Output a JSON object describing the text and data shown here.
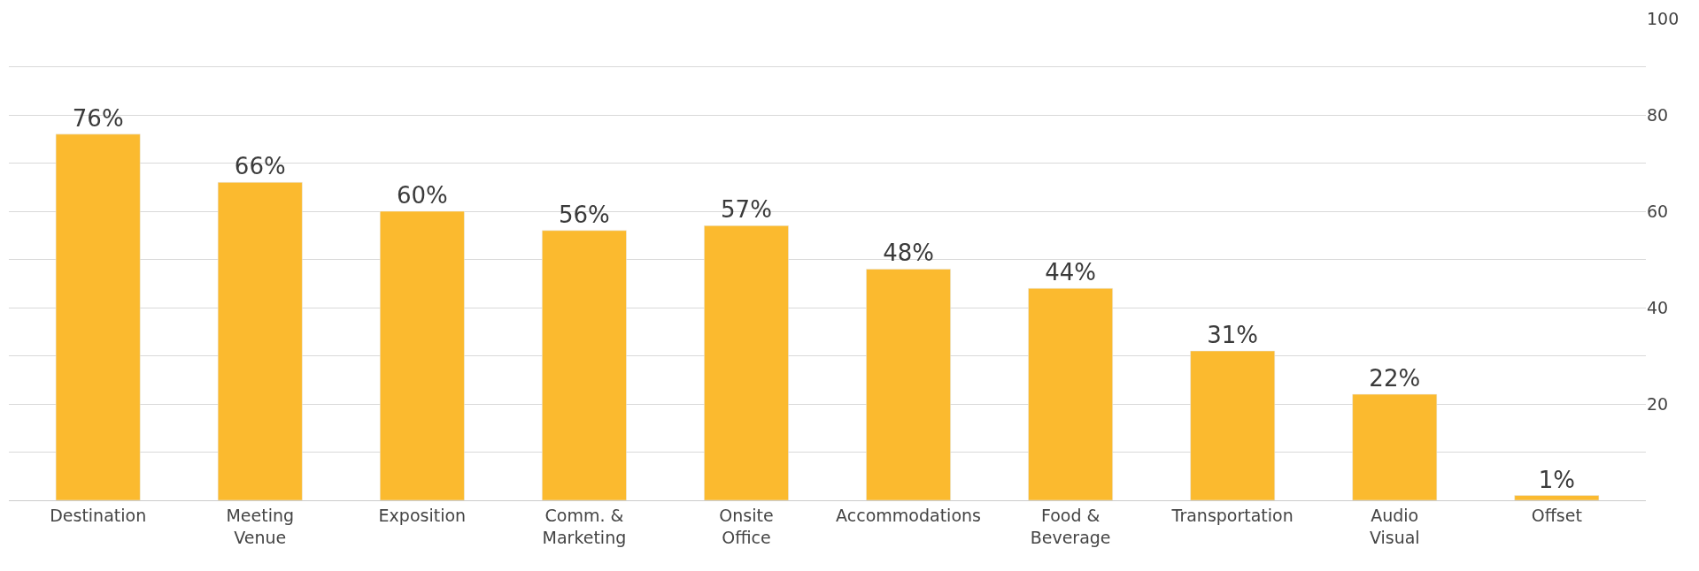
{
  "chart_data": {
    "type": "bar",
    "categories": [
      "Destination",
      "Meeting Venue",
      "Exposition",
      "Comm. & Marketing",
      "Onsite Office",
      "Accommodations",
      "Food & Beverage",
      "Transportation",
      "Audio Visual",
      "Offset"
    ],
    "values": [
      76,
      66,
      60,
      56,
      57,
      48,
      44,
      31,
      22,
      1
    ],
    "value_labels": [
      "76%",
      "66%",
      "60%",
      "56%",
      "57%",
      "48%",
      "44%",
      "31%",
      "22%",
      "1%"
    ],
    "color": "#fbba2f",
    "ylim": [
      0,
      100
    ],
    "yticks": [
      {
        "value": 0,
        "label": null
      },
      {
        "value": 10,
        "label": null
      },
      20,
      {
        "value": 30,
        "label": null
      },
      40,
      {
        "value": 50,
        "label": null
      },
      60,
      {
        "value": 70,
        "label": null
      },
      80,
      {
        "value": 90,
        "label": null
      },
      100
    ],
    "grid": true
  }
}
